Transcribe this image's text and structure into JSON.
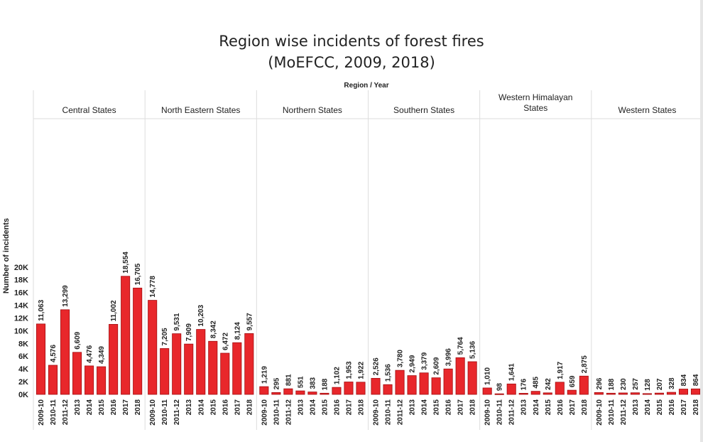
{
  "title": "Region wise incidents of forest fires",
  "subtitle": "(MoEFCC, 2009, 2018)",
  "colors": {
    "bar": "#e8272b",
    "bar_edge": "#a30d10",
    "grid": "#dddddd",
    "text": "#222222"
  },
  "chart_data": {
    "type": "bar",
    "column_header": "Region / Year",
    "ylabel": "Number of incidents",
    "ylim": [
      0,
      21000
    ],
    "y_ticks": [
      0,
      2000,
      4000,
      6000,
      8000,
      10000,
      12000,
      14000,
      16000,
      18000,
      20000
    ],
    "y_tick_labels": [
      "0K",
      "2K",
      "4K",
      "6K",
      "8K",
      "10K",
      "12K",
      "14K",
      "16K",
      "18K",
      "20K"
    ],
    "grid": false,
    "panels": [
      {
        "region": "Central States",
        "categories": [
          "2009-10",
          "2010-11",
          "2011-12",
          "2013",
          "2014",
          "2015",
          "2016",
          "2017",
          "2018"
        ],
        "values": [
          11063,
          4576,
          13299,
          6609,
          4476,
          4349,
          11002,
          18554,
          16705
        ],
        "labels": [
          "11,063",
          "4,576",
          "13,299",
          "6,609",
          "4,476",
          "4,349",
          "11,002",
          "18,554",
          "16,705"
        ]
      },
      {
        "region": "North Eastern States",
        "categories": [
          "2009-10",
          "2010-11",
          "2011-12",
          "2013",
          "2014",
          "2015",
          "2016",
          "2017",
          "2018"
        ],
        "values": [
          14778,
          7205,
          9531,
          7909,
          10203,
          8342,
          6472,
          8124,
          9557
        ],
        "labels": [
          "14,778",
          "7,205",
          "9,531",
          "7,909",
          "10,203",
          "8,342",
          "6,472",
          "8,124",
          "9,557"
        ]
      },
      {
        "region": "Northern States",
        "categories": [
          "2009-10",
          "2010-11",
          "2011-12",
          "2013",
          "2014",
          "2015",
          "2016",
          "2017",
          "2018"
        ],
        "values": [
          1219,
          295,
          881,
          551,
          383,
          188,
          1102,
          1953,
          1922
        ],
        "labels": [
          "1,219",
          "295",
          "881",
          "551",
          "383",
          "188",
          "1,102",
          "1,953",
          "1,922"
        ]
      },
      {
        "region": "Southern States",
        "categories": [
          "2009-10",
          "2010-11",
          "2011-12",
          "2013",
          "2014",
          "2015",
          "2016",
          "2017",
          "2018"
        ],
        "values": [
          2526,
          1536,
          3780,
          2949,
          3379,
          2609,
          3996,
          5764,
          5136
        ],
        "labels": [
          "2,526",
          "1,536",
          "3,780",
          "2,949",
          "3,379",
          "2,609",
          "3,996",
          "5,764",
          "5,136"
        ]
      },
      {
        "region": "Western Himalayan States",
        "categories": [
          "2009-10",
          "2010-11",
          "2011-12",
          "2013",
          "2014",
          "2015",
          "2016",
          "2017",
          "2018"
        ],
        "values": [
          1010,
          98,
          1641,
          176,
          485,
          242,
          1917,
          659,
          2875
        ],
        "labels": [
          "1,010",
          "98",
          "1,641",
          "176",
          "485",
          "242",
          "1,917",
          "659",
          "2,875"
        ]
      },
      {
        "region": "Western States",
        "categories": [
          "2009-10",
          "2010-11",
          "2011-12",
          "2013",
          "2014",
          "2015",
          "2016",
          "2017",
          "2018"
        ],
        "values": [
          296,
          188,
          230,
          257,
          128,
          207,
          328,
          834,
          864
        ],
        "labels": [
          "296",
          "188",
          "230",
          "257",
          "128",
          "207",
          "328",
          "834",
          "864"
        ]
      }
    ]
  }
}
